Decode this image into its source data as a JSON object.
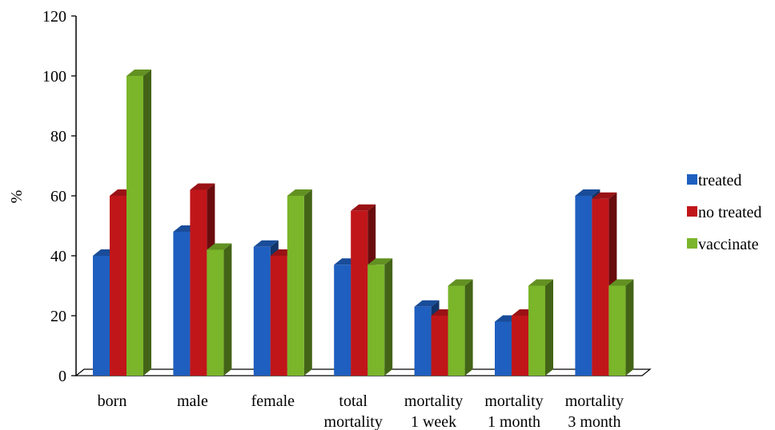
{
  "chart_data": {
    "type": "bar",
    "ylabel": "%",
    "ylim": [
      0,
      120
    ],
    "yticks": [
      0,
      20,
      40,
      60,
      80,
      100,
      120
    ],
    "categories": [
      [
        "born"
      ],
      [
        "male"
      ],
      [
        "female"
      ],
      [
        "total",
        "mortality"
      ],
      [
        "mortality",
        "1 week"
      ],
      [
        "mortality",
        "1 month"
      ],
      [
        "mortality",
        "3 month"
      ]
    ],
    "series": [
      {
        "name": "treated",
        "values": [
          40,
          48,
          43,
          37,
          23,
          18,
          60
        ]
      },
      {
        "name": "no treated",
        "values": [
          60,
          62,
          40,
          55,
          20,
          20,
          59
        ]
      },
      {
        "name": "vaccinate",
        "values": [
          100,
          42,
          60,
          37,
          30,
          30,
          30
        ]
      }
    ],
    "colors": {
      "treated": "#1f5fbf",
      "no treated": "#c0161a",
      "vaccinate": "#7ab52a"
    },
    "legend_position": "right",
    "grid": false,
    "style": "3d"
  }
}
